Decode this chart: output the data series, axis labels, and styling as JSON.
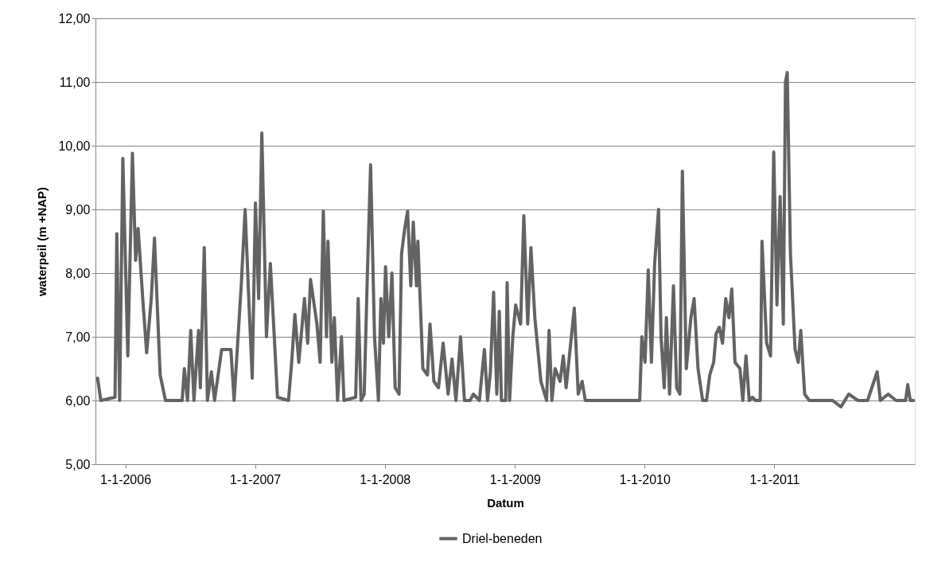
{
  "chart_data": {
    "type": "line",
    "xlabel": "Datum",
    "ylabel": "waterpeil (m +NAP)",
    "xlim": [
      "2005-10-09",
      "2012-01-31"
    ],
    "xticks": [
      {
        "value": "2006-01-01",
        "label": "1-1-2006"
      },
      {
        "value": "2007-01-01",
        "label": "1-1-2007"
      },
      {
        "value": "2008-01-01",
        "label": "1-1-2008"
      },
      {
        "value": "2009-01-01",
        "label": "1-1-2009"
      },
      {
        "value": "2010-01-01",
        "label": "1-1-2010"
      },
      {
        "value": "2011-01-01",
        "label": "1-1-2011"
      }
    ],
    "ylim": [
      5,
      12
    ],
    "yticks": [
      {
        "value": 5,
        "label": "5,00"
      },
      {
        "value": 6,
        "label": "6,00"
      },
      {
        "value": 7,
        "label": "7,00"
      },
      {
        "value": 8,
        "label": "8,00"
      },
      {
        "value": 9,
        "label": "9,00"
      },
      {
        "value": 10,
        "label": "10,00"
      },
      {
        "value": 11,
        "label": "11,00"
      },
      {
        "value": 12,
        "label": "12,00"
      }
    ],
    "grid": "y",
    "legend": "bottom",
    "marker": "none",
    "line_style": "solid",
    "x": [
      "2005-10-15",
      "2005-10-24",
      "2005-12-03",
      "2005-12-08",
      "2005-12-16",
      "2005-12-25",
      "2006-01-08",
      "2006-01-21",
      "2006-01-30",
      "2006-02-06",
      "2006-02-19",
      "2006-03-02",
      "2006-03-15",
      "2006-03-24",
      "2006-04-09",
      "2006-04-24",
      "2006-06-10",
      "2006-06-16",
      "2006-06-25",
      "2006-07-04",
      "2006-07-13",
      "2006-07-26",
      "2006-07-31",
      "2006-08-11",
      "2006-08-20",
      "2006-08-31",
      "2006-09-09",
      "2006-09-29",
      "2006-10-25",
      "2006-11-03",
      "2006-11-23",
      "2006-12-04",
      "2006-12-15",
      "2006-12-24",
      "2007-01-02",
      "2007-01-11",
      "2007-01-20",
      "2007-02-02",
      "2007-02-13",
      "2007-02-24",
      "2007-03-05",
      "2007-04-05",
      "2007-04-14",
      "2007-04-23",
      "2007-05-04",
      "2007-05-20",
      "2007-05-29",
      "2007-06-06",
      "2007-06-24",
      "2007-07-03",
      "2007-07-12",
      "2007-07-21",
      "2007-07-25",
      "2007-08-05",
      "2007-08-12",
      "2007-08-21",
      "2007-09-01",
      "2007-09-08",
      "2007-10-11",
      "2007-10-18",
      "2007-10-26",
      "2007-11-04",
      "2007-11-13",
      "2007-11-22",
      "2007-12-03",
      "2007-12-14",
      "2007-12-21",
      "2007-12-28",
      "2008-01-03",
      "2008-01-12",
      "2008-01-21",
      "2008-01-30",
      "2008-02-10",
      "2008-02-17",
      "2008-02-26",
      "2008-03-05",
      "2008-03-14",
      "2008-03-21",
      "2008-03-30",
      "2008-04-03",
      "2008-04-17",
      "2008-04-30",
      "2008-05-07",
      "2008-05-18",
      "2008-05-31",
      "2008-06-13",
      "2008-06-27",
      "2008-07-08",
      "2008-07-19",
      "2008-08-01",
      "2008-08-12",
      "2008-08-28",
      "2008-09-06",
      "2008-09-23",
      "2008-10-07",
      "2008-10-16",
      "2008-10-24",
      "2008-11-02",
      "2008-11-11",
      "2008-11-18",
      "2008-11-24",
      "2008-12-06",
      "2008-12-10",
      "2008-12-17",
      "2008-12-26",
      "2009-01-03",
      "2009-01-17",
      "2009-01-26",
      "2009-02-06",
      "2009-02-15",
      "2009-02-26",
      "2009-03-15",
      "2009-03-31",
      "2009-04-07",
      "2009-04-15",
      "2009-04-24",
      "2009-05-08",
      "2009-05-17",
      "2009-05-25",
      "2009-06-17",
      "2009-06-28",
      "2009-07-09",
      "2009-07-18",
      "2009-09-09",
      "2009-11-14",
      "2009-12-18",
      "2009-12-24",
      "2010-01-02",
      "2010-01-11",
      "2010-01-20",
      "2010-01-29",
      "2010-02-09",
      "2010-02-16",
      "2010-02-25",
      "2010-03-03",
      "2010-03-12",
      "2010-03-23",
      "2010-04-01",
      "2010-04-10",
      "2010-04-17",
      "2010-04-28",
      "2010-05-11",
      "2010-05-20",
      "2010-05-31",
      "2010-06-13",
      "2010-06-24",
      "2010-07-03",
      "2010-07-14",
      "2010-07-21",
      "2010-07-30",
      "2010-08-08",
      "2010-08-17",
      "2010-08-26",
      "2010-09-03",
      "2010-09-12",
      "2010-09-26",
      "2010-10-04",
      "2010-10-13",
      "2010-10-22",
      "2010-10-31",
      "2010-11-09",
      "2010-11-22",
      "2010-11-27",
      "2010-12-10",
      "2010-12-21",
      "2010-12-30",
      "2011-01-08",
      "2011-01-17",
      "2011-01-26",
      "2011-02-01",
      "2011-02-06",
      "2011-02-15",
      "2011-02-28",
      "2011-03-09",
      "2011-03-16",
      "2011-03-27",
      "2011-04-09",
      "2011-06-14",
      "2011-07-07",
      "2011-07-29",
      "2011-08-24",
      "2011-09-20",
      "2011-10-17",
      "2011-10-26",
      "2011-11-17",
      "2011-12-09",
      "2012-01-05",
      "2012-01-11",
      "2012-01-18",
      "2012-01-27"
    ],
    "series": [
      {
        "name": "Driel-beneden",
        "color": "#636363",
        "values": [
          6.35,
          6.0,
          6.05,
          8.62,
          6.0,
          9.8,
          6.7,
          9.88,
          8.2,
          8.7,
          7.6,
          6.75,
          7.6,
          8.55,
          6.4,
          6.0,
          6.0,
          6.5,
          6.0,
          7.1,
          6.0,
          7.1,
          6.2,
          8.4,
          6.0,
          6.45,
          6.0,
          6.8,
          6.8,
          6.0,
          7.8,
          9.0,
          7.5,
          6.35,
          9.1,
          7.6,
          10.2,
          7.0,
          8.15,
          7.0,
          6.05,
          6.0,
          6.6,
          7.35,
          6.6,
          7.6,
          6.9,
          7.9,
          7.2,
          6.6,
          8.97,
          7.0,
          8.5,
          6.6,
          7.3,
          6.0,
          7.0,
          6.0,
          6.05,
          7.6,
          6.0,
          6.1,
          8.0,
          9.7,
          7.0,
          6.0,
          7.6,
          6.9,
          8.1,
          7.0,
          8.0,
          6.2,
          6.1,
          8.3,
          8.7,
          8.97,
          7.8,
          8.8,
          7.8,
          8.5,
          6.5,
          6.4,
          7.2,
          6.3,
          6.2,
          6.9,
          6.1,
          6.65,
          6.0,
          7.0,
          6.0,
          6.0,
          6.1,
          6.0,
          6.8,
          6.0,
          6.45,
          7.7,
          6.1,
          7.4,
          6.0,
          6.0,
          7.85,
          6.0,
          7.0,
          7.5,
          7.2,
          8.9,
          7.2,
          8.4,
          7.3,
          6.3,
          6.0,
          7.1,
          6.0,
          6.5,
          6.3,
          6.7,
          6.2,
          7.45,
          6.1,
          6.3,
          6.0,
          6.0,
          6.0,
          6.0,
          7.0,
          6.6,
          8.05,
          6.6,
          8.15,
          9.0,
          7.0,
          6.2,
          7.3,
          6.1,
          7.8,
          6.2,
          6.1,
          9.6,
          6.5,
          7.3,
          7.6,
          6.5,
          6.0,
          6.0,
          6.4,
          6.6,
          7.05,
          7.15,
          6.9,
          7.6,
          7.3,
          7.75,
          6.6,
          6.5,
          6.0,
          6.7,
          6.0,
          6.05,
          6.0,
          6.0,
          8.5,
          6.9,
          6.7,
          9.9,
          7.5,
          9.2,
          7.2,
          11.0,
          11.15,
          8.3,
          6.8,
          6.6,
          7.1,
          6.1,
          6.0,
          6.0,
          5.9,
          6.1,
          6.0,
          6.0,
          6.45,
          6.0,
          6.1,
          6.0,
          6.0,
          6.25,
          6.0,
          6.0
        ]
      }
    ]
  }
}
